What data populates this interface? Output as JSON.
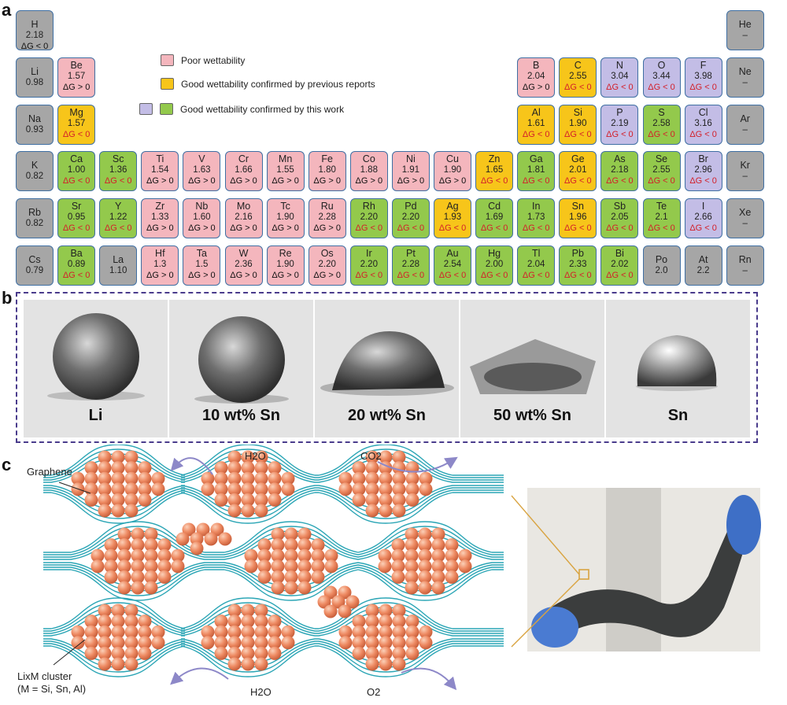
{
  "panels": {
    "a": "a",
    "b": "b",
    "c": "c"
  },
  "legend": [
    {
      "text": "Poor wettability",
      "colors": [
        "#f4b6bd"
      ]
    },
    {
      "text": "Good wettability confirmed by previous reports",
      "colors": [
        "#f7c51a"
      ]
    },
    {
      "text": "Good wettability confirmed by this work",
      "colors": [
        "#c3bde6",
        "#93c94c"
      ]
    }
  ],
  "elements": [
    {
      "s": "H",
      "v": "2.18",
      "dg": "ΔG < 0",
      "c": "grey",
      "r": 0,
      "col": 0
    },
    {
      "s": "He",
      "v": "–",
      "dg": "",
      "c": "grey",
      "r": 0,
      "col": 17
    },
    {
      "s": "Li",
      "v": "0.98",
      "dg": "",
      "c": "grey",
      "r": 1,
      "col": 0
    },
    {
      "s": "Be",
      "v": "1.57",
      "dg": "ΔG > 0",
      "c": "pink",
      "r": 1,
      "col": 1
    },
    {
      "s": "B",
      "v": "2.04",
      "dg": "ΔG > 0",
      "c": "pink",
      "r": 1,
      "col": 12
    },
    {
      "s": "C",
      "v": "2.55",
      "dg": "ΔG < 0",
      "c": "yellow",
      "r": 1,
      "col": 13
    },
    {
      "s": "N",
      "v": "3.04",
      "dg": "ΔG < 0",
      "c": "purple",
      "r": 1,
      "col": 14
    },
    {
      "s": "O",
      "v": "3.44",
      "dg": "ΔG < 0",
      "c": "purple",
      "r": 1,
      "col": 15
    },
    {
      "s": "F",
      "v": "3.98",
      "dg": "ΔG < 0",
      "c": "purple",
      "r": 1,
      "col": 16
    },
    {
      "s": "Ne",
      "v": "–",
      "dg": "",
      "c": "grey",
      "r": 1,
      "col": 17
    },
    {
      "s": "Na",
      "v": "0.93",
      "dg": "",
      "c": "grey",
      "r": 2,
      "col": 0
    },
    {
      "s": "Mg",
      "v": "1.57",
      "dg": "ΔG < 0",
      "c": "yellow",
      "r": 2,
      "col": 1
    },
    {
      "s": "Al",
      "v": "1.61",
      "dg": "ΔG < 0",
      "c": "yellow",
      "r": 2,
      "col": 12
    },
    {
      "s": "Si",
      "v": "1.90",
      "dg": "ΔG < 0",
      "c": "yellow",
      "r": 2,
      "col": 13
    },
    {
      "s": "P",
      "v": "2.19",
      "dg": "ΔG < 0",
      "c": "purple",
      "r": 2,
      "col": 14
    },
    {
      "s": "S",
      "v": "2.58",
      "dg": "ΔG < 0",
      "c": "green",
      "r": 2,
      "col": 15
    },
    {
      "s": "Cl",
      "v": "3.16",
      "dg": "ΔG < 0",
      "c": "purple",
      "r": 2,
      "col": 16
    },
    {
      "s": "Ar",
      "v": "–",
      "dg": "",
      "c": "grey",
      "r": 2,
      "col": 17
    },
    {
      "s": "K",
      "v": "0.82",
      "dg": "",
      "c": "grey",
      "r": 3,
      "col": 0
    },
    {
      "s": "Ca",
      "v": "1.00",
      "dg": "ΔG < 0",
      "c": "green",
      "r": 3,
      "col": 1
    },
    {
      "s": "Sc",
      "v": "1.36",
      "dg": "ΔG < 0",
      "c": "green",
      "r": 3,
      "col": 2
    },
    {
      "s": "Ti",
      "v": "1.54",
      "dg": "ΔG > 0",
      "c": "pink",
      "r": 3,
      "col": 3
    },
    {
      "s": "V",
      "v": "1.63",
      "dg": "ΔG > 0",
      "c": "pink",
      "r": 3,
      "col": 4
    },
    {
      "s": "Cr",
      "v": "1.66",
      "dg": "ΔG > 0",
      "c": "pink",
      "r": 3,
      "col": 5
    },
    {
      "s": "Mn",
      "v": "1.55",
      "dg": "ΔG > 0",
      "c": "pink",
      "r": 3,
      "col": 6
    },
    {
      "s": "Fe",
      "v": "1.80",
      "dg": "ΔG > 0",
      "c": "pink",
      "r": 3,
      "col": 7
    },
    {
      "s": "Co",
      "v": "1.88",
      "dg": "ΔG > 0",
      "c": "pink",
      "r": 3,
      "col": 8
    },
    {
      "s": "Ni",
      "v": "1.91",
      "dg": "ΔG > 0",
      "c": "pink",
      "r": 3,
      "col": 9
    },
    {
      "s": "Cu",
      "v": "1.90",
      "dg": "ΔG > 0",
      "c": "pink",
      "r": 3,
      "col": 10
    },
    {
      "s": "Zn",
      "v": "1.65",
      "dg": "ΔG < 0",
      "c": "yellow",
      "r": 3,
      "col": 11
    },
    {
      "s": "Ga",
      "v": "1.81",
      "dg": "ΔG < 0",
      "c": "green",
      "r": 3,
      "col": 12
    },
    {
      "s": "Ge",
      "v": "2.01",
      "dg": "ΔG < 0",
      "c": "yellow",
      "r": 3,
      "col": 13
    },
    {
      "s": "As",
      "v": "2.18",
      "dg": "ΔG < 0",
      "c": "green",
      "r": 3,
      "col": 14
    },
    {
      "s": "Se",
      "v": "2.55",
      "dg": "ΔG < 0",
      "c": "green",
      "r": 3,
      "col": 15
    },
    {
      "s": "Br",
      "v": "2.96",
      "dg": "ΔG < 0",
      "c": "purple",
      "r": 3,
      "col": 16
    },
    {
      "s": "Kr",
      "v": "–",
      "dg": "",
      "c": "grey",
      "r": 3,
      "col": 17
    },
    {
      "s": "Rb",
      "v": "0.82",
      "dg": "",
      "c": "grey",
      "r": 4,
      "col": 0
    },
    {
      "s": "Sr",
      "v": "0.95",
      "dg": "ΔG < 0",
      "c": "green",
      "r": 4,
      "col": 1
    },
    {
      "s": "Y",
      "v": "1.22",
      "dg": "ΔG < 0",
      "c": "green",
      "r": 4,
      "col": 2
    },
    {
      "s": "Zr",
      "v": "1.33",
      "dg": "ΔG > 0",
      "c": "pink",
      "r": 4,
      "col": 3
    },
    {
      "s": "Nb",
      "v": "1.60",
      "dg": "ΔG > 0",
      "c": "pink",
      "r": 4,
      "col": 4
    },
    {
      "s": "Mo",
      "v": "2.16",
      "dg": "ΔG > 0",
      "c": "pink",
      "r": 4,
      "col": 5
    },
    {
      "s": "Tc",
      "v": "1.90",
      "dg": "ΔG > 0",
      "c": "pink",
      "r": 4,
      "col": 6
    },
    {
      "s": "Ru",
      "v": "2.28",
      "dg": "ΔG > 0",
      "c": "pink",
      "r": 4,
      "col": 7
    },
    {
      "s": "Rh",
      "v": "2.20",
      "dg": "ΔG < 0",
      "c": "green",
      "r": 4,
      "col": 8
    },
    {
      "s": "Pd",
      "v": "2.20",
      "dg": "ΔG < 0",
      "c": "green",
      "r": 4,
      "col": 9
    },
    {
      "s": "Ag",
      "v": "1.93",
      "dg": "ΔG < 0",
      "c": "yellow",
      "r": 4,
      "col": 10
    },
    {
      "s": "Cd",
      "v": "1.69",
      "dg": "ΔG < 0",
      "c": "green",
      "r": 4,
      "col": 11
    },
    {
      "s": "In",
      "v": "1.73",
      "dg": "ΔG < 0",
      "c": "green",
      "r": 4,
      "col": 12
    },
    {
      "s": "Sn",
      "v": "1.96",
      "dg": "ΔG < 0",
      "c": "yellow",
      "r": 4,
      "col": 13
    },
    {
      "s": "Sb",
      "v": "2.05",
      "dg": "ΔG < 0",
      "c": "green",
      "r": 4,
      "col": 14
    },
    {
      "s": "Te",
      "v": "2.1",
      "dg": "ΔG < 0",
      "c": "green",
      "r": 4,
      "col": 15
    },
    {
      "s": "I",
      "v": "2.66",
      "dg": "ΔG < 0",
      "c": "purple",
      "r": 4,
      "col": 16
    },
    {
      "s": "Xe",
      "v": "–",
      "dg": "",
      "c": "grey",
      "r": 4,
      "col": 17
    },
    {
      "s": "Cs",
      "v": "0.79",
      "dg": "",
      "c": "grey",
      "r": 5,
      "col": 0
    },
    {
      "s": "Ba",
      "v": "0.89",
      "dg": "ΔG < 0",
      "c": "green",
      "r": 5,
      "col": 1
    },
    {
      "s": "La",
      "v": "1.10",
      "dg": "",
      "c": "grey",
      "r": 5,
      "col": 2
    },
    {
      "s": "Hf",
      "v": "1.3",
      "dg": "ΔG > 0",
      "c": "pink",
      "r": 5,
      "col": 3
    },
    {
      "s": "Ta",
      "v": "1.5",
      "dg": "ΔG > 0",
      "c": "pink",
      "r": 5,
      "col": 4
    },
    {
      "s": "W",
      "v": "2.36",
      "dg": "ΔG > 0",
      "c": "pink",
      "r": 5,
      "col": 5
    },
    {
      "s": "Re",
      "v": "1.90",
      "dg": "ΔG > 0",
      "c": "pink",
      "r": 5,
      "col": 6
    },
    {
      "s": "Os",
      "v": "2.20",
      "dg": "ΔG > 0",
      "c": "pink",
      "r": 5,
      "col": 7
    },
    {
      "s": "Ir",
      "v": "2.20",
      "dg": "ΔG < 0",
      "c": "green",
      "r": 5,
      "col": 8
    },
    {
      "s": "Pt",
      "v": "2.28",
      "dg": "ΔG < 0",
      "c": "green",
      "r": 5,
      "col": 9
    },
    {
      "s": "Au",
      "v": "2.54",
      "dg": "ΔG < 0",
      "c": "green",
      "r": 5,
      "col": 10
    },
    {
      "s": "Hg",
      "v": "2.00",
      "dg": "ΔG < 0",
      "c": "green",
      "r": 5,
      "col": 11
    },
    {
      "s": "Tl",
      "v": "2.04",
      "dg": "ΔG < 0",
      "c": "green",
      "r": 5,
      "col": 12
    },
    {
      "s": "Pb",
      "v": "2.33",
      "dg": "ΔG < 0",
      "c": "green",
      "r": 5,
      "col": 13
    },
    {
      "s": "Bi",
      "v": "2.02",
      "dg": "ΔG < 0",
      "c": "green",
      "r": 5,
      "col": 14
    },
    {
      "s": "Po",
      "v": "2.0",
      "dg": "",
      "c": "grey",
      "r": 5,
      "col": 15
    },
    {
      "s": "At",
      "v": "2.2",
      "dg": "",
      "c": "grey",
      "r": 5,
      "col": 16
    },
    {
      "s": "Rn",
      "v": "–",
      "dg": "",
      "c": "grey",
      "r": 5,
      "col": 17
    }
  ],
  "photos": [
    "Li",
    "10 wt% Sn",
    "20 wt% Sn",
    "50 wt% Sn",
    "Sn"
  ],
  "panel_c": {
    "graphene_label": "Graphene",
    "cluster_label_line1": "LixM cluster",
    "cluster_label_line2": "(M = Si, Sn, Al)",
    "h2o_top": "H2O",
    "co2": "CO2",
    "h2o_bottom": "H2O",
    "o2": "O2"
  },
  "colors": {
    "grey": "#a6a6a6",
    "pink": "#f4b6bd",
    "yellow": "#f7c51a",
    "purple": "#c3bde6",
    "green": "#93c94c",
    "red_text": "#d3202a",
    "graphene": "#2aa5b5",
    "sphere": "#ee8a62",
    "arrow": "#8d88c8"
  }
}
